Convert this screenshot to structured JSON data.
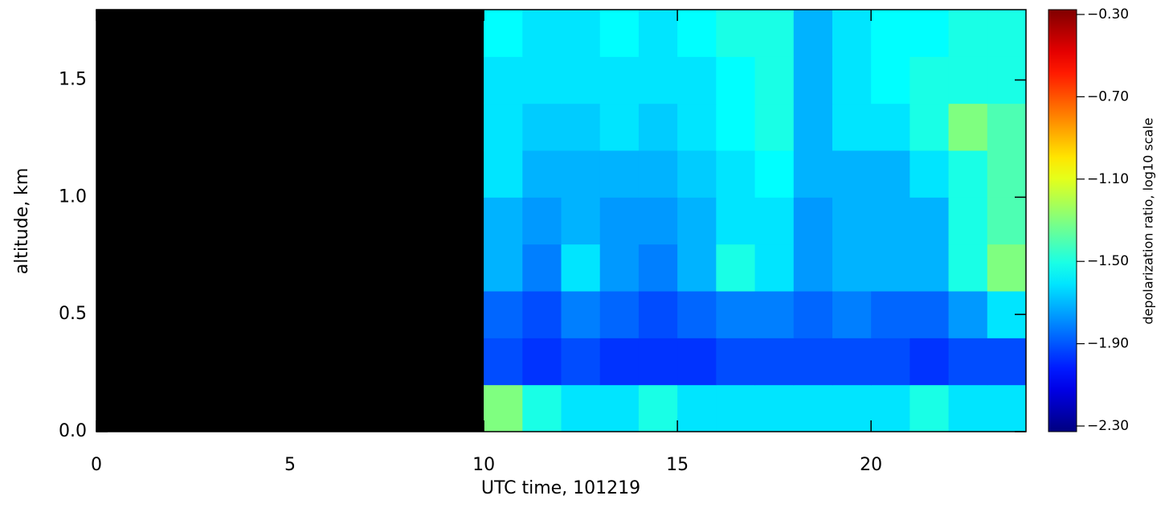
{
  "chart_data": {
    "type": "heatmap",
    "xlabel": "UTC time, 101219",
    "ylabel": "altitude, km",
    "colorbar_label": "depolarization ratio, log10 scale",
    "colormap": "jet",
    "xlim": [
      0,
      24
    ],
    "xticks": [
      0,
      5,
      10,
      15,
      20
    ],
    "ylim": [
      0,
      1.8
    ],
    "yticks": [
      {
        "value": 0,
        "label": "0.0"
      },
      0.5,
      {
        "value": 1,
        "label": "1.0"
      },
      1.5
    ],
    "clim": [
      -2.3,
      -0.3
    ],
    "cticks": [
      {
        "value": -0.3,
        "label": "−0.30"
      },
      {
        "value": -0.7,
        "label": "−0.70"
      },
      {
        "value": -1.1,
        "label": "−1.10"
      },
      {
        "value": -1.5,
        "label": "−1.50"
      },
      {
        "value": -1.9,
        "label": "−1.90"
      },
      {
        "value": -2.3,
        "label": "−2.30"
      }
    ],
    "x": [
      10,
      11,
      12,
      13,
      14,
      15,
      16,
      17,
      18,
      19,
      20,
      21,
      22,
      23,
      24
    ],
    "y": [
      0,
      0.2,
      0.4,
      0.6,
      0.8,
      1.0,
      1.2,
      1.4,
      1.6,
      1.8
    ],
    "values": [
      [
        -1.3,
        -1.5,
        -1.6,
        -1.6,
        -1.5,
        -1.6,
        -1.6,
        -1.6,
        -1.6,
        -1.6,
        -1.6,
        -1.5,
        -1.6,
        -1.6
      ],
      [
        -1.9,
        -1.95,
        -1.9,
        -1.95,
        -1.95,
        -1.95,
        -1.9,
        -1.9,
        -1.9,
        -1.9,
        -1.9,
        -1.95,
        -1.9,
        -1.9
      ],
      [
        -1.85,
        -1.9,
        -1.8,
        -1.85,
        -1.9,
        -1.85,
        -1.8,
        -1.8,
        -1.85,
        -1.8,
        -1.85,
        -1.85,
        -1.75,
        -1.6
      ],
      [
        -1.7,
        -1.8,
        -1.6,
        -1.75,
        -1.8,
        -1.7,
        -1.5,
        -1.6,
        -1.75,
        -1.7,
        -1.7,
        -1.7,
        -1.5,
        -1.3
      ],
      [
        -1.7,
        -1.75,
        -1.7,
        -1.75,
        -1.75,
        -1.7,
        -1.6,
        -1.6,
        -1.75,
        -1.7,
        -1.7,
        -1.7,
        -1.5,
        -1.4
      ],
      [
        -1.6,
        -1.7,
        -1.7,
        -1.7,
        -1.7,
        -1.65,
        -1.6,
        -1.55,
        -1.7,
        -1.7,
        -1.7,
        -1.6,
        -1.5,
        -1.4
      ],
      [
        -1.6,
        -1.65,
        -1.65,
        -1.6,
        -1.65,
        -1.6,
        -1.55,
        -1.5,
        -1.7,
        -1.6,
        -1.6,
        -1.5,
        -1.3,
        -1.4
      ],
      [
        -1.6,
        -1.6,
        -1.6,
        -1.6,
        -1.6,
        -1.6,
        -1.55,
        -1.5,
        -1.7,
        -1.6,
        -1.55,
        -1.5,
        -1.5,
        -1.5
      ],
      [
        -1.55,
        -1.6,
        -1.6,
        -1.55,
        -1.6,
        -1.55,
        -1.5,
        -1.5,
        -1.7,
        -1.6,
        -1.55,
        -1.55,
        -1.5,
        -1.5
      ]
    ]
  }
}
